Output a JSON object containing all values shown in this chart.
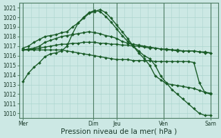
{
  "background_color": "#cce8e4",
  "grid_color": "#aad4ce",
  "line_color": "#1a5c28",
  "marker": "D",
  "markersize": 2.0,
  "linewidth": 1.0,
  "ylim": [
    1009.5,
    1021.5
  ],
  "yticks": [
    1010,
    1011,
    1012,
    1013,
    1014,
    1015,
    1016,
    1017,
    1018,
    1019,
    1020,
    1021
  ],
  "xlabel": "Pression niveau de la mer( hPa )",
  "xlabel_fontsize": 7.5,
  "tick_fontsize": 5.5,
  "xtick_labels": [
    "Mer",
    "Dim",
    "Jeu",
    "Ven",
    "Sam"
  ],
  "xtick_positions": [
    0,
    18,
    24,
    36,
    48
  ],
  "vline_positions": [
    0,
    18,
    24,
    36,
    48
  ],
  "xlim": [
    -1,
    50
  ],
  "series": [
    [
      1013.3,
      1014.2,
      1014.8,
      1015.3,
      1015.9,
      1016.2,
      1016.3,
      1016.5,
      1017.0,
      1018.3,
      1019.4,
      1020.0,
      1020.5,
      1020.7,
      1020.6,
      1020.1,
      1019.5,
      1018.8,
      1018.1,
      1017.5,
      1017.0,
      1016.5,
      1016.0,
      1015.7,
      1015.0,
      1013.9,
      1013.2,
      1012.5,
      1012.0,
      1011.5,
      1011.0,
      1010.5,
      1010.0,
      1009.8,
      1009.8
    ],
    [
      1016.6,
      1016.7,
      1016.8,
      1017.0,
      1017.4,
      1017.6,
      1017.8,
      1018.0,
      1018.1,
      1018.2,
      1018.3,
      1018.4,
      1018.5,
      1018.4,
      1018.3,
      1018.1,
      1018.0,
      1017.8,
      1017.5,
      1017.3,
      1017.2,
      1017.1,
      1017.0,
      1016.9,
      1016.8,
      1016.7,
      1016.6,
      1016.6,
      1016.5,
      1016.5,
      1016.5,
      1016.5,
      1016.4,
      1016.3,
      1016.3
    ],
    [
      1016.6,
      1016.6,
      1016.7,
      1016.8,
      1016.9,
      1017.0,
      1017.1,
      1017.2,
      1017.2,
      1017.3,
      1017.3,
      1017.4,
      1017.4,
      1017.4,
      1017.3,
      1017.3,
      1017.2,
      1017.2,
      1017.1,
      1017.1,
      1017.0,
      1017.0,
      1016.9,
      1016.8,
      1016.8,
      1016.7,
      1016.7,
      1016.6,
      1016.6,
      1016.5,
      1016.5,
      1016.5,
      1016.4,
      1016.4,
      1016.3
    ],
    [
      1016.6,
      1016.6,
      1016.6,
      1016.6,
      1016.6,
      1016.6,
      1016.6,
      1016.6,
      1016.5,
      1016.4,
      1016.3,
      1016.2,
      1016.1,
      1016.0,
      1015.9,
      1015.8,
      1015.7,
      1015.6,
      1015.6,
      1015.6,
      1015.5,
      1015.5,
      1015.5,
      1015.5,
      1015.4,
      1015.4,
      1015.4,
      1015.4,
      1015.4,
      1015.4,
      1015.4,
      1015.3,
      1013.2,
      1012.2,
      1012.0
    ],
    [
      1016.8,
      1017.0,
      1017.4,
      1017.7,
      1018.0,
      1018.1,
      1018.2,
      1018.4,
      1018.5,
      1019.0,
      1019.4,
      1019.9,
      1020.4,
      1020.6,
      1020.8,
      1020.5,
      1019.9,
      1019.2,
      1018.5,
      1017.8,
      1017.0,
      1016.3,
      1015.7,
      1015.0,
      1013.9,
      1013.5,
      1013.1,
      1013.0,
      1012.9,
      1012.8,
      1012.7,
      1012.6,
      1012.4,
      1012.2,
      1012.1
    ]
  ]
}
